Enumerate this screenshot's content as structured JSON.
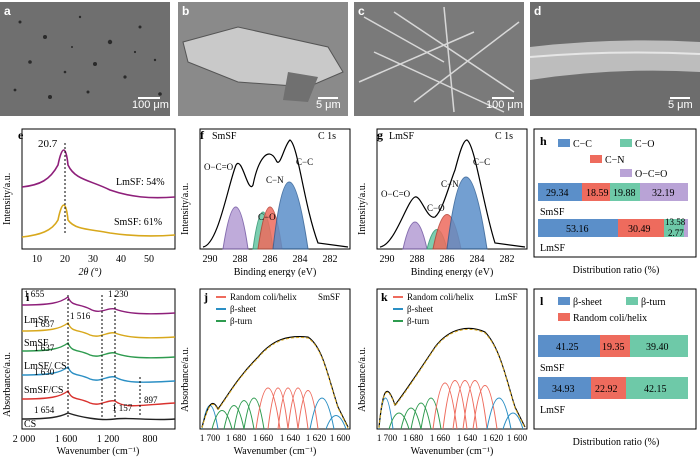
{
  "panels": {
    "a": {
      "letter": "a",
      "scale": "100 μm"
    },
    "b": {
      "letter": "b",
      "scale": "5 μm"
    },
    "c": {
      "letter": "c",
      "scale": "100 μm"
    },
    "d": {
      "letter": "d",
      "scale": "5 μm"
    },
    "e": {
      "letter": "e",
      "ylabel": "Intensity/a.u.",
      "xlabel": "2θ (°)",
      "peak": "20.7",
      "curves": [
        "LmSF: 54%",
        "SmSF: 61%"
      ],
      "ticks": [
        "10",
        "20",
        "30",
        "40",
        "50"
      ]
    },
    "f": {
      "letter": "f",
      "name": "SmSF",
      "region": "C 1s",
      "ylabel": "Intensity/a.u.",
      "xlabel": "Binding energy (eV)",
      "peaks": [
        "O−C=O",
        "C−O",
        "C−N",
        "C−C"
      ],
      "ticks": [
        "290",
        "288",
        "286",
        "284",
        "282"
      ]
    },
    "g": {
      "letter": "g",
      "name": "LmSF",
      "region": "C 1s",
      "ylabel": "Intensity/a.u.",
      "xlabel": "Binding energy (eV)",
      "peaks": [
        "O−C=O",
        "C−O",
        "C−N",
        "C−C"
      ],
      "ticks": [
        "290",
        "288",
        "286",
        "284",
        "282"
      ]
    },
    "h": {
      "letter": "h",
      "legend": [
        "C−C",
        "C−O",
        "C−N",
        "O−C=O"
      ],
      "xlabel": "Distribution ratio (%)",
      "rows": [
        {
          "name": "SmSF",
          "values": [
            "29.34",
            "18.59",
            "19.88",
            "32.19"
          ]
        },
        {
          "name": "LmSF",
          "values": [
            "53.16",
            "30.49",
            "13.58",
            "2.77"
          ]
        }
      ]
    },
    "i": {
      "letter": "i",
      "ylabel": "Absorbance/a.u.",
      "xlabel": "Wavenumber (cm⁻¹)",
      "curves": [
        "LmSF",
        "SmSF",
        "LmSF/ CS",
        "SmSF/CS",
        "CS"
      ],
      "bands": [
        "1 655",
        "1 637",
        "1 637",
        "1 630",
        "1 654",
        "1 516",
        "1 230",
        "1 157",
        "897"
      ],
      "ticks": [
        "2 000",
        "1 600",
        "1 200",
        "800"
      ]
    },
    "j": {
      "letter": "j",
      "name": "SmSF",
      "ylabel": "Absorbance/a.u.",
      "xlabel": "Wavenumber (cm⁻¹)",
      "legend": [
        "Random coli/helix",
        "β-sheet",
        "β-turn"
      ],
      "ticks": [
        "1 700",
        "1 680",
        "1 660",
        "1 640",
        "1 620",
        "1 600"
      ]
    },
    "k": {
      "letter": "k",
      "name": "LmSF",
      "ylabel": "Absorbance/a.u.",
      "xlabel": "Wavenumber (cm⁻¹)",
      "legend": [
        "Random coli/helix",
        "β-sheet",
        "β-turn"
      ],
      "ticks": [
        "1 700",
        "1 680",
        "1 660",
        "1 640",
        "1 620",
        "1 600"
      ]
    },
    "l": {
      "letter": "l",
      "legend": [
        "β-sheet",
        "β-turn",
        "Random coli/helix"
      ],
      "xlabel": "Distribution ratio (%)",
      "rows": [
        {
          "name": "SmSF",
          "values": [
            "41.25",
            "19.35",
            "39.40"
          ]
        },
        {
          "name": "LmSF",
          "values": [
            "34.93",
            "22.92",
            "42.15"
          ]
        }
      ]
    }
  },
  "colors": {
    "cc": "#5b8fc9",
    "co": "#6ec9a8",
    "cn": "#ee6b5d",
    "ocoo": "#b9a3d6",
    "purple": "#8e1f7a",
    "gold": "#d8a81c",
    "sheet": "#5b8fc9",
    "turn": "#6ec9a8",
    "random": "#ee6b5d"
  }
}
